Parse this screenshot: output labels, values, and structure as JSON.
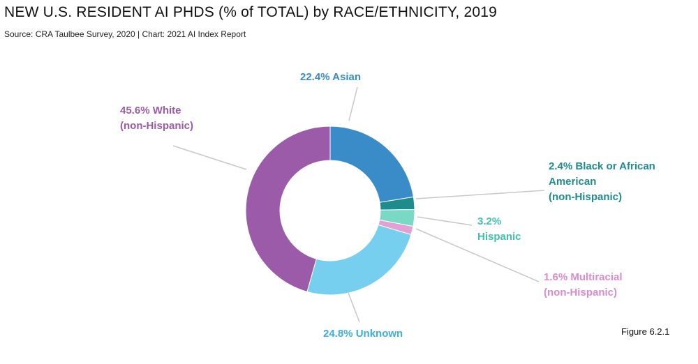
{
  "header": {
    "title": "NEW U.S. RESIDENT AI PHDS (% of TOTAL) by RACE/ETHNICITY, 2019",
    "subtitle": "Source: CRA Taulbee Survey, 2020 | Chart: 2021 AI Index Report"
  },
  "figure_label": "Figure 6.2.1",
  "chart_data": {
    "type": "pie",
    "donut": true,
    "title": "NEW U.S. RESIDENT AI PHDS (% of TOTAL) by RACE/ETHNICITY, 2019",
    "unit": "%",
    "slices": [
      {
        "name": "Asian",
        "value": 22.4,
        "color": "#3a8cc9",
        "label_lines": [
          "22.4% Asian"
        ]
      },
      {
        "name": "Black or African American (non-Hispanic)",
        "value": 2.4,
        "color": "#1e8c8c",
        "label_lines": [
          "2.4% Black or African",
          "American",
          "(non-Hispanic)"
        ]
      },
      {
        "name": "Hispanic",
        "value": 3.2,
        "color": "#79d9c4",
        "label_lines": [
          "3.2%",
          "Hispanic"
        ]
      },
      {
        "name": "Multiracial (non-Hispanic)",
        "value": 1.6,
        "color": "#e49fd6",
        "label_lines": [
          "1.6% Multiracial",
          "(non-Hispanic)"
        ]
      },
      {
        "name": "Unknown",
        "value": 24.8,
        "color": "#77cff0",
        "label_lines": [
          "24.8% Unknown"
        ]
      },
      {
        "name": "White (non-Hispanic)",
        "value": 45.6,
        "color": "#9b5ba8",
        "label_lines": [
          "45.6% White",
          "(non-Hispanic)"
        ]
      }
    ],
    "label_colors": [
      "#3a8cc9",
      "#1e8c8c",
      "#3fc2ad",
      "#d98ccb",
      "#3aaee0",
      "#9b5ba8"
    ]
  }
}
